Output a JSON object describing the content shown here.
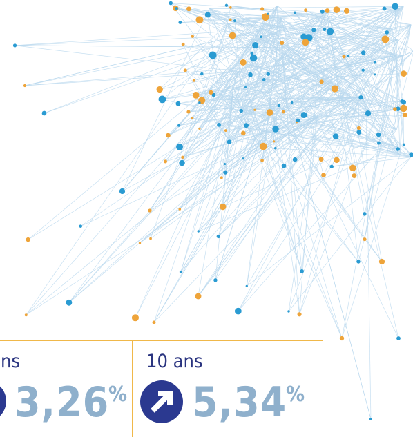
{
  "boxes": [
    {
      "label": "ns",
      "value": "3,26",
      "unit": "%"
    },
    {
      "label": "10 ans",
      "value": "5,34",
      "unit": "%"
    }
  ]
}
